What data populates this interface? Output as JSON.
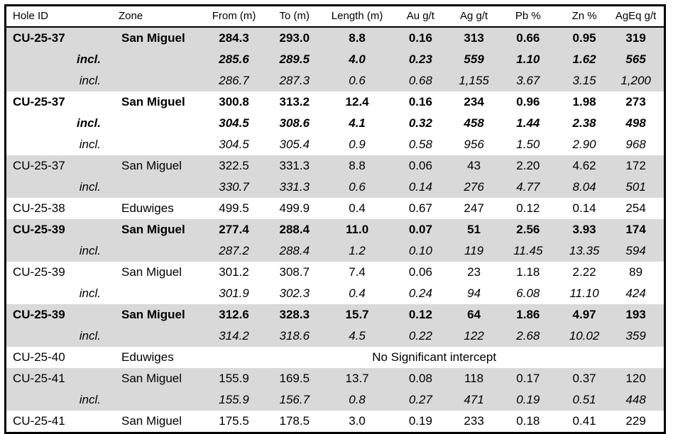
{
  "colors": {
    "row_shade": "#d9d9d9",
    "border": "#000000",
    "background": "#ffffff",
    "text": "#000000"
  },
  "table": {
    "columns": [
      "Hole ID",
      "Zone",
      "From (m)",
      "To (m)",
      "Length (m)",
      "Au g/t",
      "Ag g/t",
      "Pb %",
      "Zn %",
      "AgEq g/t"
    ],
    "rows": [
      {
        "hole": "CU-25-37",
        "zone": "San Miguel",
        "values": [
          "284.3",
          "293.0",
          "8.8",
          "0.16",
          "313",
          "0.66",
          "0.95",
          "319"
        ],
        "style": "bold",
        "shaded": true
      },
      {
        "hole": "incl.",
        "zone": "",
        "values": [
          "285.6",
          "289.5",
          "4.0",
          "0.23",
          "559",
          "1.10",
          "1.62",
          "565"
        ],
        "style": "bold-italic",
        "shaded": true
      },
      {
        "hole": "incl.",
        "zone": "",
        "values": [
          "286.7",
          "287.3",
          "0.6",
          "0.68",
          "1,155",
          "3.67",
          "3.15",
          "1,200"
        ],
        "style": "italic",
        "shaded": true
      },
      {
        "hole": "CU-25-37",
        "zone": "San Miguel",
        "values": [
          "300.8",
          "313.2",
          "12.4",
          "0.16",
          "234",
          "0.96",
          "1.98",
          "273"
        ],
        "style": "bold",
        "shaded": false
      },
      {
        "hole": "incl.",
        "zone": "",
        "values": [
          "304.5",
          "308.6",
          "4.1",
          "0.32",
          "458",
          "1.44",
          "2.38",
          "498"
        ],
        "style": "bold-italic",
        "shaded": false
      },
      {
        "hole": "incl.",
        "zone": "",
        "values": [
          "304.5",
          "305.4",
          "0.9",
          "0.58",
          "956",
          "1.50",
          "2.90",
          "968"
        ],
        "style": "italic",
        "shaded": false
      },
      {
        "hole": "CU-25-37",
        "zone": "San Miguel",
        "values": [
          "322.5",
          "331.3",
          "8.8",
          "0.06",
          "43",
          "2.20",
          "4.62",
          "172"
        ],
        "style": "normal",
        "shaded": true
      },
      {
        "hole": "incl.",
        "zone": "",
        "values": [
          "330.7",
          "331.3",
          "0.6",
          "0.14",
          "276",
          "4.77",
          "8.04",
          "501"
        ],
        "style": "italic",
        "shaded": true
      },
      {
        "hole": "CU-25-38",
        "zone": "Eduwiges",
        "values": [
          "499.5",
          "499.9",
          "0.4",
          "0.67",
          "247",
          "0.12",
          "0.14",
          "254"
        ],
        "style": "normal",
        "shaded": false
      },
      {
        "hole": "CU-25-39",
        "zone": "San Miguel",
        "values": [
          "277.4",
          "288.4",
          "11.0",
          "0.07",
          "51",
          "2.56",
          "3.93",
          "174"
        ],
        "style": "bold",
        "shaded": true
      },
      {
        "hole": "incl.",
        "zone": "",
        "values": [
          "287.2",
          "288.4",
          "1.2",
          "0.10",
          "119",
          "11.45",
          "13.35",
          "594"
        ],
        "style": "italic",
        "shaded": true
      },
      {
        "hole": "CU-25-39",
        "zone": "San Miguel",
        "values": [
          "301.2",
          "308.7",
          "7.4",
          "0.06",
          "23",
          "1.18",
          "2.22",
          "89"
        ],
        "style": "normal",
        "shaded": false
      },
      {
        "hole": "incl.",
        "zone": "",
        "values": [
          "301.9",
          "302.3",
          "0.4",
          "0.24",
          "94",
          "6.08",
          "11.10",
          "424"
        ],
        "style": "italic",
        "shaded": false
      },
      {
        "hole": "CU-25-39",
        "zone": "San Miguel",
        "values": [
          "312.6",
          "328.3",
          "15.7",
          "0.12",
          "64",
          "1.86",
          "4.97",
          "193"
        ],
        "style": "bold",
        "shaded": true
      },
      {
        "hole": "incl.",
        "zone": "",
        "values": [
          "314.2",
          "318.6",
          "4.5",
          "0.22",
          "122",
          "2.68",
          "10.02",
          "359"
        ],
        "style": "italic",
        "shaded": true
      },
      {
        "hole": "CU-25-40",
        "zone": "Eduwiges",
        "note": "No Significant intercept",
        "style": "normal",
        "shaded": false
      },
      {
        "hole": "CU-25-41",
        "zone": "San Miguel",
        "values": [
          "155.9",
          "169.5",
          "13.7",
          "0.08",
          "118",
          "0.17",
          "0.37",
          "120"
        ],
        "style": "normal",
        "shaded": true
      },
      {
        "hole": "incl.",
        "zone": "",
        "values": [
          "155.9",
          "156.7",
          "0.8",
          "0.27",
          "471",
          "0.19",
          "0.51",
          "448"
        ],
        "style": "italic",
        "shaded": true
      },
      {
        "hole": "CU-25-41",
        "zone": "San Miguel",
        "values": [
          "175.5",
          "178.5",
          "3.0",
          "0.19",
          "233",
          "0.18",
          "0.41",
          "229"
        ],
        "style": "normal",
        "shaded": false
      }
    ]
  }
}
